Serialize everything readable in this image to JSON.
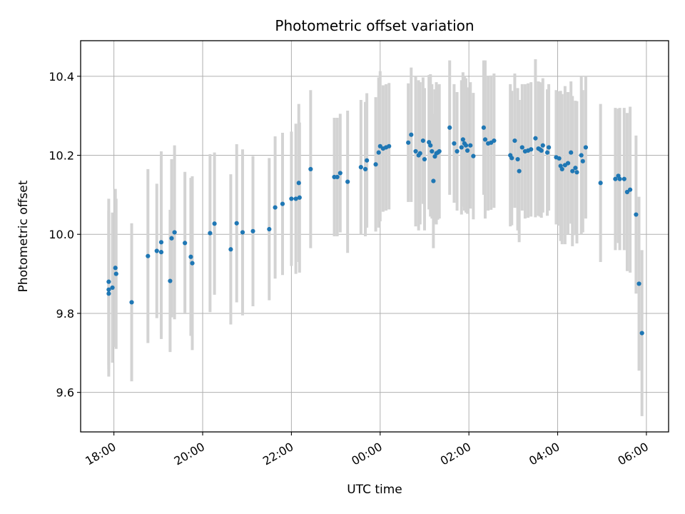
{
  "chart_data": {
    "type": "scatter",
    "title": "Photometric offset variation",
    "xlabel": "UTC time",
    "ylabel": "Photometric offset",
    "x_tick_labels": [
      "18:00",
      "20:00",
      "22:00",
      "00:00",
      "02:00",
      "04:00",
      "06:00"
    ],
    "y_tick_labels": [
      "9.6",
      "9.8",
      "10.0",
      "10.2",
      "10.4"
    ],
    "y_ticks": [
      9.6,
      9.8,
      10.0,
      10.2,
      10.4
    ],
    "xlim": [
      "17:15",
      "06:30"
    ],
    "ylim": [
      9.5,
      10.49
    ],
    "grid": true,
    "marker_color": "#1f77b4",
    "errorbar_color": "#d3d3d3",
    "series": [
      {
        "x": [
          "17:53",
          "17:53",
          "17:53",
          "17:58",
          "18:02",
          "18:03",
          "18:24",
          "18:46",
          "18:58",
          "19:04",
          "19:04",
          "19:16",
          "19:18",
          "19:22",
          "19:36",
          "19:44",
          "19:46",
          "20:10",
          "20:16",
          "20:38",
          "20:46",
          "20:54",
          "21:08",
          "21:30",
          "21:38",
          "21:48",
          "22:00",
          "22:06",
          "22:10",
          "22:11",
          "22:26",
          "22:58",
          "23:02",
          "23:06",
          "23:16",
          "23:34",
          "23:40",
          "23:42",
          "23:54",
          "23:58",
          "24:00",
          "24:04",
          "24:08",
          "24:12",
          "24:38",
          "24:42",
          "24:48",
          "24:52",
          "24:54",
          "24:58",
          "25:00",
          "25:06",
          "25:08",
          "25:10",
          "25:12",
          "25:14",
          "25:16",
          "25:18",
          "25:20",
          "25:34",
          "25:40",
          "25:44",
          "25:50",
          "25:52",
          "25:54",
          "25:56",
          "25:58",
          "26:02",
          "26:06",
          "26:20",
          "26:22",
          "26:26",
          "26:30",
          "26:34",
          "26:56",
          "26:58",
          "27:02",
          "27:06",
          "27:08",
          "27:12",
          "27:16",
          "27:20",
          "27:24",
          "27:30",
          "27:34",
          "27:36",
          "27:38",
          "27:40",
          "27:46",
          "27:48",
          "27:58",
          "28:02",
          "28:04",
          "28:06",
          "28:10",
          "28:14",
          "28:18",
          "28:20",
          "28:24",
          "28:26",
          "28:32",
          "28:34",
          "28:38",
          "28:58",
          "29:18",
          "29:22",
          "29:24",
          "29:30",
          "29:34",
          "29:38",
          "29:46",
          "29:50",
          "29:54"
        ],
        "y": [
          9.88,
          9.86,
          9.85,
          9.865,
          9.915,
          9.9,
          9.828,
          9.945,
          9.958,
          9.98,
          9.955,
          9.882,
          9.99,
          10.005,
          9.978,
          9.943,
          9.927,
          10.003,
          10.027,
          9.962,
          10.028,
          10.005,
          10.008,
          10.013,
          10.068,
          10.077,
          10.09,
          10.09,
          10.13,
          10.093,
          10.165,
          10.145,
          10.145,
          10.155,
          10.133,
          10.17,
          10.165,
          10.187,
          10.177,
          10.207,
          10.223,
          10.217,
          10.22,
          10.223,
          10.232,
          10.252,
          10.21,
          10.2,
          10.205,
          10.237,
          10.19,
          10.233,
          10.225,
          10.21,
          10.135,
          10.197,
          10.205,
          10.207,
          10.21,
          10.27,
          10.23,
          10.21,
          10.22,
          10.24,
          10.23,
          10.225,
          10.212,
          10.225,
          10.198,
          10.27,
          10.24,
          10.23,
          10.232,
          10.237,
          10.2,
          10.193,
          10.237,
          10.19,
          10.16,
          10.22,
          10.21,
          10.212,
          10.215,
          10.243,
          10.217,
          10.215,
          10.212,
          10.225,
          10.207,
          10.22,
          10.195,
          10.192,
          10.173,
          10.165,
          10.175,
          10.18,
          10.207,
          10.16,
          10.168,
          10.157,
          10.2,
          10.185,
          10.22,
          10.13,
          10.14,
          10.148,
          10.14,
          10.14,
          10.107,
          10.113,
          10.05,
          9.875,
          9.75
        ],
        "yerr": [
          0.21,
          0.2,
          0.21,
          0.19,
          0.2,
          0.19,
          0.2,
          0.22,
          0.17,
          0.23,
          0.22,
          0.18,
          0.2,
          0.22,
          0.18,
          0.2,
          0.22,
          0.2,
          0.18,
          0.19,
          0.2,
          0.21,
          0.19,
          0.18,
          0.18,
          0.18,
          0.17,
          0.19,
          0.2,
          0.19,
          0.2,
          0.15,
          0.15,
          0.15,
          0.18,
          0.17,
          0.17,
          0.17,
          0.17,
          0.19,
          0.19,
          0.16,
          0.16,
          0.16,
          0.15,
          0.17,
          0.19,
          0.19,
          0.18,
          0.16,
          0.18,
          0.17,
          0.18,
          0.17,
          0.17,
          0.17,
          0.18,
          0.17,
          0.17,
          0.17,
          0.15,
          0.15,
          0.17,
          0.17,
          0.17,
          0.17,
          0.16,
          0.16,
          0.16,
          0.17,
          0.2,
          0.17,
          0.17,
          0.17,
          0.18,
          0.17,
          0.17,
          0.18,
          0.18,
          0.16,
          0.17,
          0.17,
          0.17,
          0.2,
          0.17,
          0.17,
          0.17,
          0.17,
          0.16,
          0.16,
          0.17,
          0.17,
          0.19,
          0.19,
          0.2,
          0.18,
          0.18,
          0.19,
          0.17,
          0.18,
          0.2,
          0.18,
          0.18,
          0.2,
          0.18,
          0.17,
          0.18,
          0.18,
          0.2,
          0.21,
          0.2,
          0.22,
          0.21
        ]
      }
    ]
  }
}
